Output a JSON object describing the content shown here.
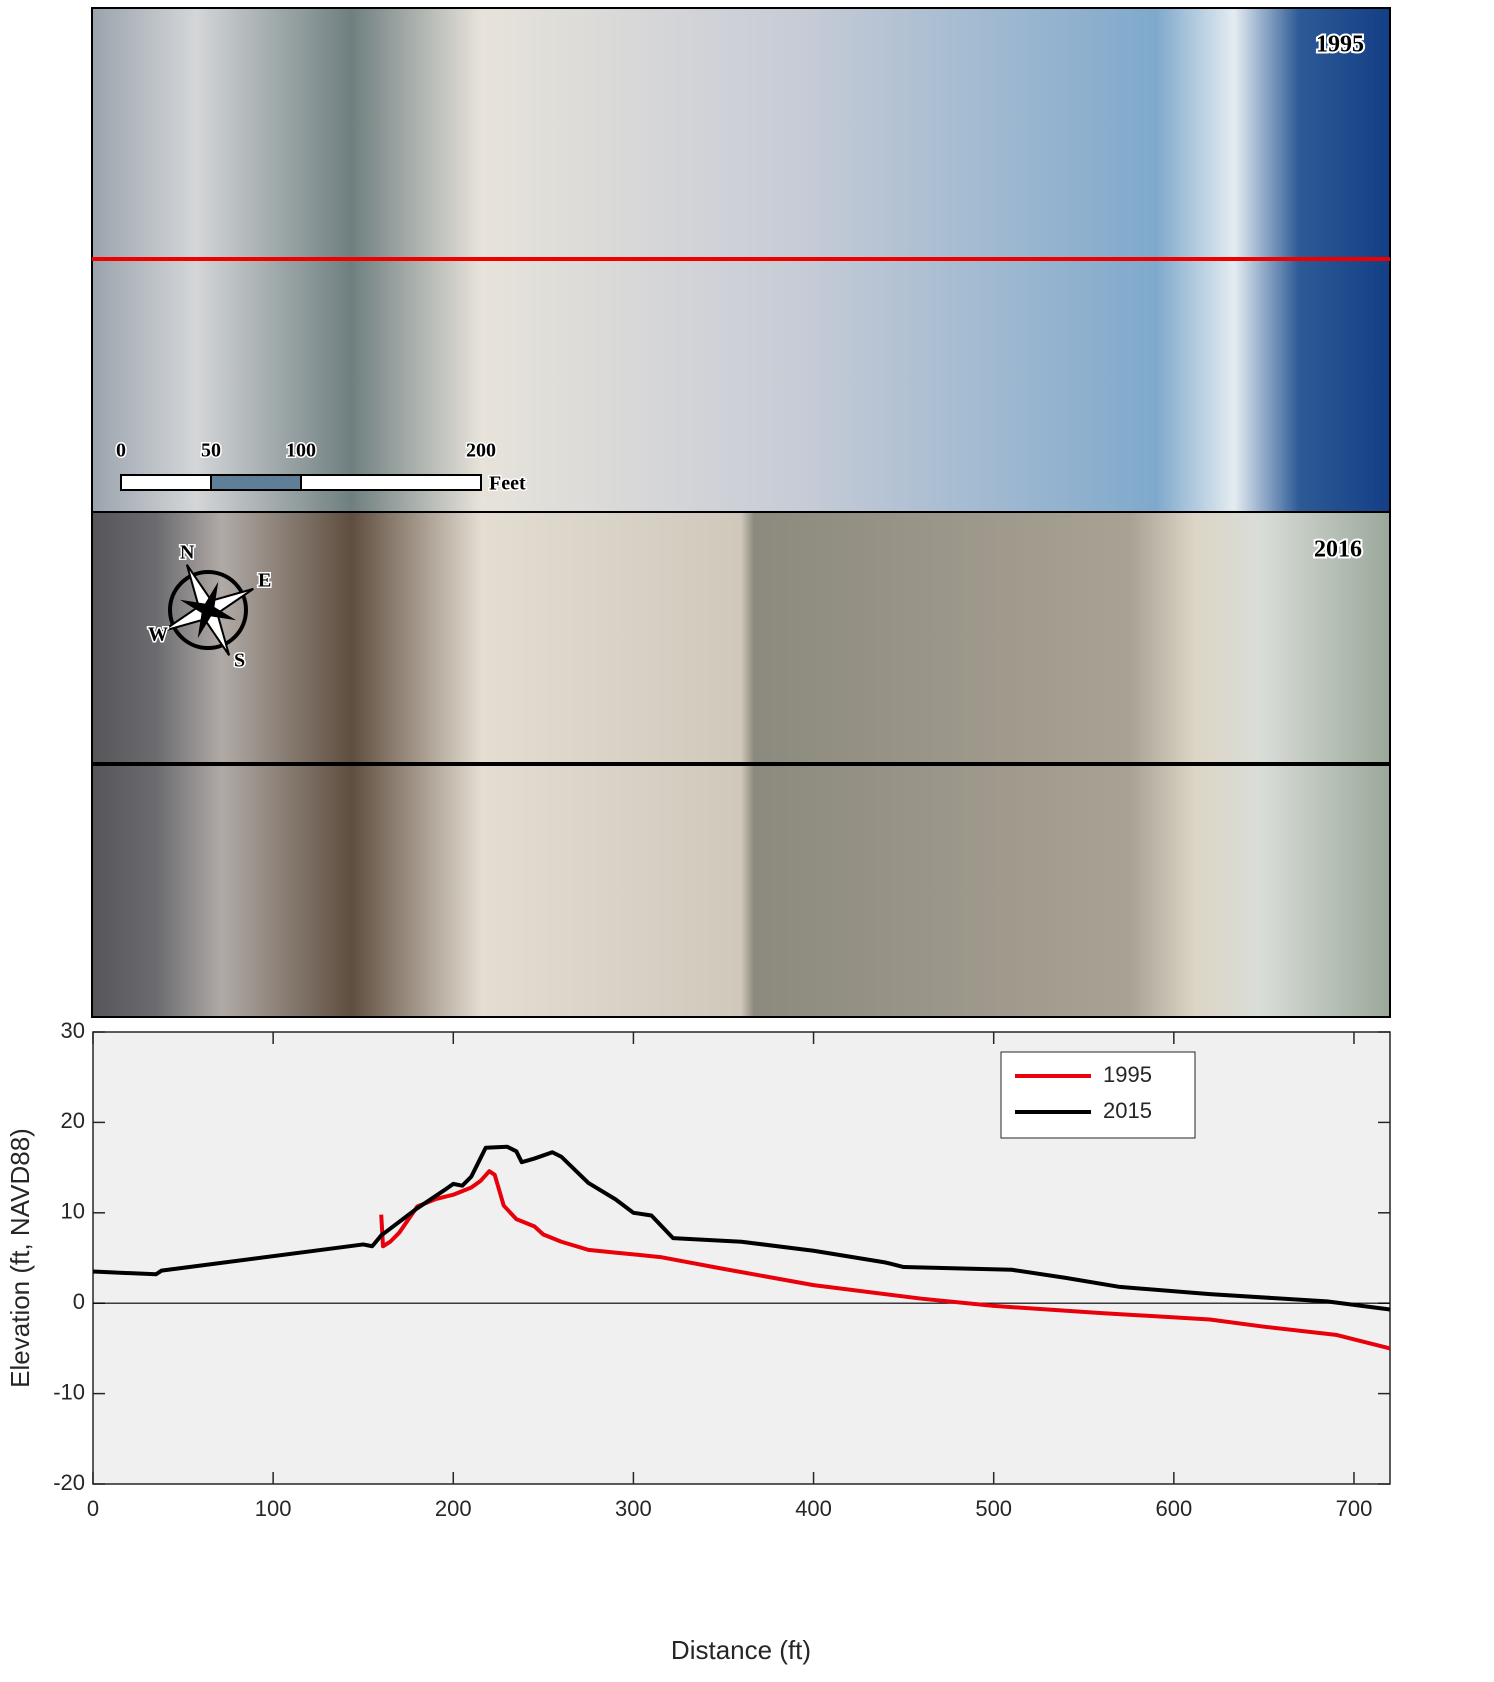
{
  "images": [
    {
      "label": "1995"
    },
    {
      "label": "2016"
    }
  ],
  "scale_bar": {
    "ticks": [
      0,
      50,
      100,
      200
    ],
    "unit": "Feet"
  },
  "compass": {
    "n": "N",
    "e": "E",
    "s": "S",
    "w": "W"
  },
  "chart_data": {
    "type": "line",
    "xlabel": "Distance (ft)",
    "ylabel": "Elevation (ft, NAVD88)",
    "xlim": [
      0,
      720
    ],
    "ylim": [
      -20,
      30
    ],
    "xticks": [
      0,
      100,
      200,
      300,
      400,
      500,
      600,
      700
    ],
    "yticks": [
      -20,
      -10,
      0,
      10,
      20,
      30
    ],
    "legend": "top-right",
    "series": [
      {
        "name": "1995",
        "color": "#e8000b",
        "x": [
          160,
          161,
          165,
          170,
          180,
          190,
          200,
          210,
          215,
          220,
          223,
          228,
          235,
          245,
          250,
          260,
          275,
          290,
          315,
          350,
          400,
          460,
          500,
          560,
          620,
          650,
          690,
          720
        ],
        "values": [
          9.8,
          6.3,
          6.8,
          7.8,
          10.7,
          11.5,
          12,
          12.8,
          13.5,
          14.6,
          14.2,
          10.8,
          9.3,
          8.5,
          7.6,
          6.8,
          5.9,
          5.6,
          5.1,
          3.8,
          2,
          0.5,
          -0.3,
          -1.1,
          -1.8,
          -2.6,
          -3.5,
          -5
        ]
      },
      {
        "name": "2015",
        "color": "#000000",
        "x": [
          0,
          35,
          38,
          150,
          155,
          160,
          180,
          195,
          200,
          205,
          210,
          215,
          218,
          230,
          235,
          238,
          245,
          255,
          260,
          275,
          290,
          300,
          310,
          322,
          360,
          400,
          440,
          450,
          510,
          540,
          570,
          620,
          685,
          720
        ],
        "values": [
          3.5,
          3.2,
          3.6,
          6.5,
          6.3,
          7.5,
          10.5,
          12.5,
          13.2,
          13,
          14,
          16,
          17.2,
          17.3,
          16.8,
          15.6,
          16,
          16.7,
          16.2,
          13.3,
          11.5,
          10,
          9.7,
          7.2,
          6.8,
          5.8,
          4.5,
          4,
          3.7,
          2.8,
          1.8,
          1,
          0.2,
          -0.7
        ]
      }
    ]
  }
}
